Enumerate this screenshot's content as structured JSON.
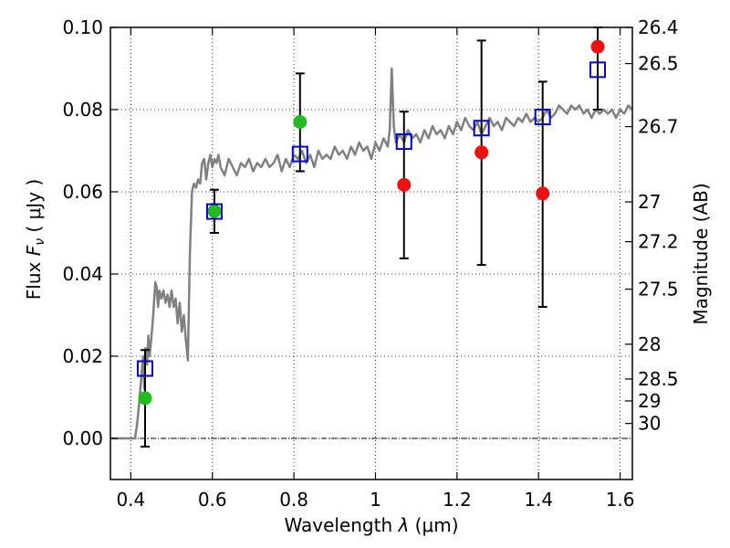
{
  "chart_data": {
    "type": "scatter",
    "xlabel": {
      "prefix": "Wavelength  ",
      "symbol": "λ",
      "unit": " (μm)"
    },
    "ylabel": {
      "prefix": "Flux  ",
      "symbol": "F",
      "subscript": "ν",
      "unit": "  ( μJy )"
    },
    "y2label": "Magnitude (AB)",
    "xlim": [
      0.35,
      1.63
    ],
    "ylim": [
      -0.01,
      0.1
    ],
    "x_ticks": [
      {
        "value": 0.4,
        "label": "0.4"
      },
      {
        "value": 0.6,
        "label": "0.6"
      },
      {
        "value": 0.8,
        "label": "0.8"
      },
      {
        "value": 1.0,
        "label": "1"
      },
      {
        "value": 1.2,
        "label": "1.2"
      },
      {
        "value": 1.4,
        "label": "1.4"
      },
      {
        "value": 1.6,
        "label": "1.6"
      }
    ],
    "y_ticks": [
      {
        "value": 0.0,
        "label": "0.00"
      },
      {
        "value": 0.02,
        "label": "0.02"
      },
      {
        "value": 0.04,
        "label": "0.04"
      },
      {
        "value": 0.06,
        "label": "0.06"
      },
      {
        "value": 0.08,
        "label": "0.08"
      },
      {
        "value": 0.1,
        "label": "0.10"
      }
    ],
    "magnitude_ticks": [
      {
        "mag": 26.4,
        "label": "26.4"
      },
      {
        "mag": 26.5,
        "label": "26.5"
      },
      {
        "mag": 26.7,
        "label": "26.7"
      },
      {
        "mag": 27.0,
        "label": "27"
      },
      {
        "mag": 27.2,
        "label": "27.2"
      },
      {
        "mag": 27.5,
        "label": "27.5"
      },
      {
        "mag": 28.0,
        "label": "28"
      },
      {
        "mag": 28.5,
        "label": "28.5"
      },
      {
        "mag": 29.0,
        "label": "29"
      },
      {
        "mag": 30.0,
        "label": "30"
      }
    ],
    "grid": true,
    "zero_line": true,
    "colors": {
      "spectrum": "#808080",
      "detection": "#22bb22",
      "upper": "#ee1111",
      "model": "#0000cc",
      "errorbar": "#000000"
    },
    "spectrum": {
      "x": [
        0.35,
        0.4,
        0.41,
        0.415,
        0.42,
        0.425,
        0.43,
        0.433,
        0.436,
        0.44,
        0.443,
        0.446,
        0.45,
        0.455,
        0.46,
        0.463,
        0.467,
        0.47,
        0.475,
        0.48,
        0.485,
        0.49,
        0.495,
        0.5,
        0.505,
        0.51,
        0.515,
        0.52,
        0.525,
        0.53,
        0.535,
        0.54,
        0.542,
        0.545,
        0.55,
        0.555,
        0.56,
        0.565,
        0.57,
        0.575,
        0.58,
        0.585,
        0.59,
        0.595,
        0.6,
        0.605,
        0.61,
        0.615,
        0.62,
        0.625,
        0.63,
        0.64,
        0.65,
        0.66,
        0.67,
        0.68,
        0.69,
        0.7,
        0.71,
        0.72,
        0.73,
        0.74,
        0.75,
        0.76,
        0.77,
        0.78,
        0.79,
        0.8,
        0.81,
        0.82,
        0.83,
        0.84,
        0.85,
        0.86,
        0.87,
        0.88,
        0.89,
        0.9,
        0.91,
        0.92,
        0.93,
        0.94,
        0.95,
        0.96,
        0.97,
        0.98,
        0.99,
        1.0,
        1.01,
        1.02,
        1.03,
        1.035,
        1.04,
        1.045,
        1.05,
        1.06,
        1.07,
        1.08,
        1.09,
        1.1,
        1.11,
        1.12,
        1.13,
        1.14,
        1.15,
        1.16,
        1.17,
        1.18,
        1.19,
        1.2,
        1.21,
        1.22,
        1.23,
        1.24,
        1.25,
        1.26,
        1.27,
        1.28,
        1.29,
        1.3,
        1.31,
        1.32,
        1.33,
        1.34,
        1.35,
        1.36,
        1.37,
        1.38,
        1.39,
        1.4,
        1.41,
        1.42,
        1.43,
        1.44,
        1.45,
        1.46,
        1.47,
        1.48,
        1.49,
        1.5,
        1.51,
        1.52,
        1.53,
        1.54,
        1.55,
        1.56,
        1.57,
        1.58,
        1.59,
        1.6,
        1.61,
        1.62,
        1.63
      ],
      "y": [
        0.0,
        0.0,
        0.0,
        0.003,
        0.008,
        0.014,
        0.02,
        0.012,
        0.022,
        0.018,
        0.025,
        0.02,
        0.024,
        0.03,
        0.038,
        0.037,
        0.032,
        0.036,
        0.034,
        0.036,
        0.033,
        0.035,
        0.032,
        0.036,
        0.032,
        0.034,
        0.028,
        0.033,
        0.026,
        0.03,
        0.024,
        0.019,
        0.03,
        0.045,
        0.06,
        0.062,
        0.061,
        0.063,
        0.062,
        0.067,
        0.068,
        0.063,
        0.067,
        0.069,
        0.066,
        0.068,
        0.067,
        0.069,
        0.066,
        0.065,
        0.064,
        0.068,
        0.066,
        0.064,
        0.067,
        0.066,
        0.068,
        0.065,
        0.067,
        0.066,
        0.068,
        0.066,
        0.067,
        0.069,
        0.065,
        0.068,
        0.066,
        0.069,
        0.068,
        0.07,
        0.067,
        0.069,
        0.066,
        0.07,
        0.068,
        0.069,
        0.068,
        0.071,
        0.069,
        0.07,
        0.068,
        0.071,
        0.069,
        0.072,
        0.07,
        0.071,
        0.068,
        0.072,
        0.07,
        0.073,
        0.071,
        0.075,
        0.09,
        0.076,
        0.072,
        0.074,
        0.072,
        0.075,
        0.073,
        0.074,
        0.072,
        0.075,
        0.073,
        0.076,
        0.074,
        0.075,
        0.073,
        0.076,
        0.074,
        0.077,
        0.075,
        0.078,
        0.076,
        0.075,
        0.077,
        0.074,
        0.076,
        0.078,
        0.076,
        0.077,
        0.075,
        0.078,
        0.077,
        0.076,
        0.078,
        0.077,
        0.079,
        0.077,
        0.078,
        0.077,
        0.078,
        0.08,
        0.078,
        0.079,
        0.081,
        0.08,
        0.079,
        0.081,
        0.08,
        0.081,
        0.079,
        0.08,
        0.078,
        0.08,
        0.079,
        0.08,
        0.079,
        0.08,
        0.078,
        0.08,
        0.079,
        0.081,
        0.08
      ]
    },
    "detections": [
      {
        "x": 0.435,
        "y": 0.0098
      },
      {
        "x": 0.605,
        "y": 0.0553
      },
      {
        "x": 0.815,
        "y": 0.077
      }
    ],
    "upper_limits": [
      {
        "x": 1.07,
        "y": 0.0617
      },
      {
        "x": 1.26,
        "y": 0.0696
      },
      {
        "x": 1.41,
        "y": 0.0596
      },
      {
        "x": 1.545,
        "y": 0.0953
      }
    ],
    "model_points": [
      {
        "x": 0.435,
        "y": 0.017
      },
      {
        "x": 0.605,
        "y": 0.0552
      },
      {
        "x": 0.815,
        "y": 0.0692
      },
      {
        "x": 1.07,
        "y": 0.0722
      },
      {
        "x": 1.26,
        "y": 0.0755
      },
      {
        "x": 1.41,
        "y": 0.0782
      },
      {
        "x": 1.545,
        "y": 0.0897
      }
    ],
    "error_bars": [
      {
        "x": 0.435,
        "low": -0.002,
        "high": 0.0215
      },
      {
        "x": 0.605,
        "low": 0.05,
        "high": 0.0605
      },
      {
        "x": 0.815,
        "low": 0.065,
        "high": 0.0888
      },
      {
        "x": 1.07,
        "low": 0.0438,
        "high": 0.0795
      },
      {
        "x": 1.26,
        "low": 0.0422,
        "high": 0.0968
      },
      {
        "x": 1.41,
        "low": 0.032,
        "high": 0.0868
      },
      {
        "x": 1.545,
        "low": 0.08,
        "high": 0.1
      }
    ]
  }
}
